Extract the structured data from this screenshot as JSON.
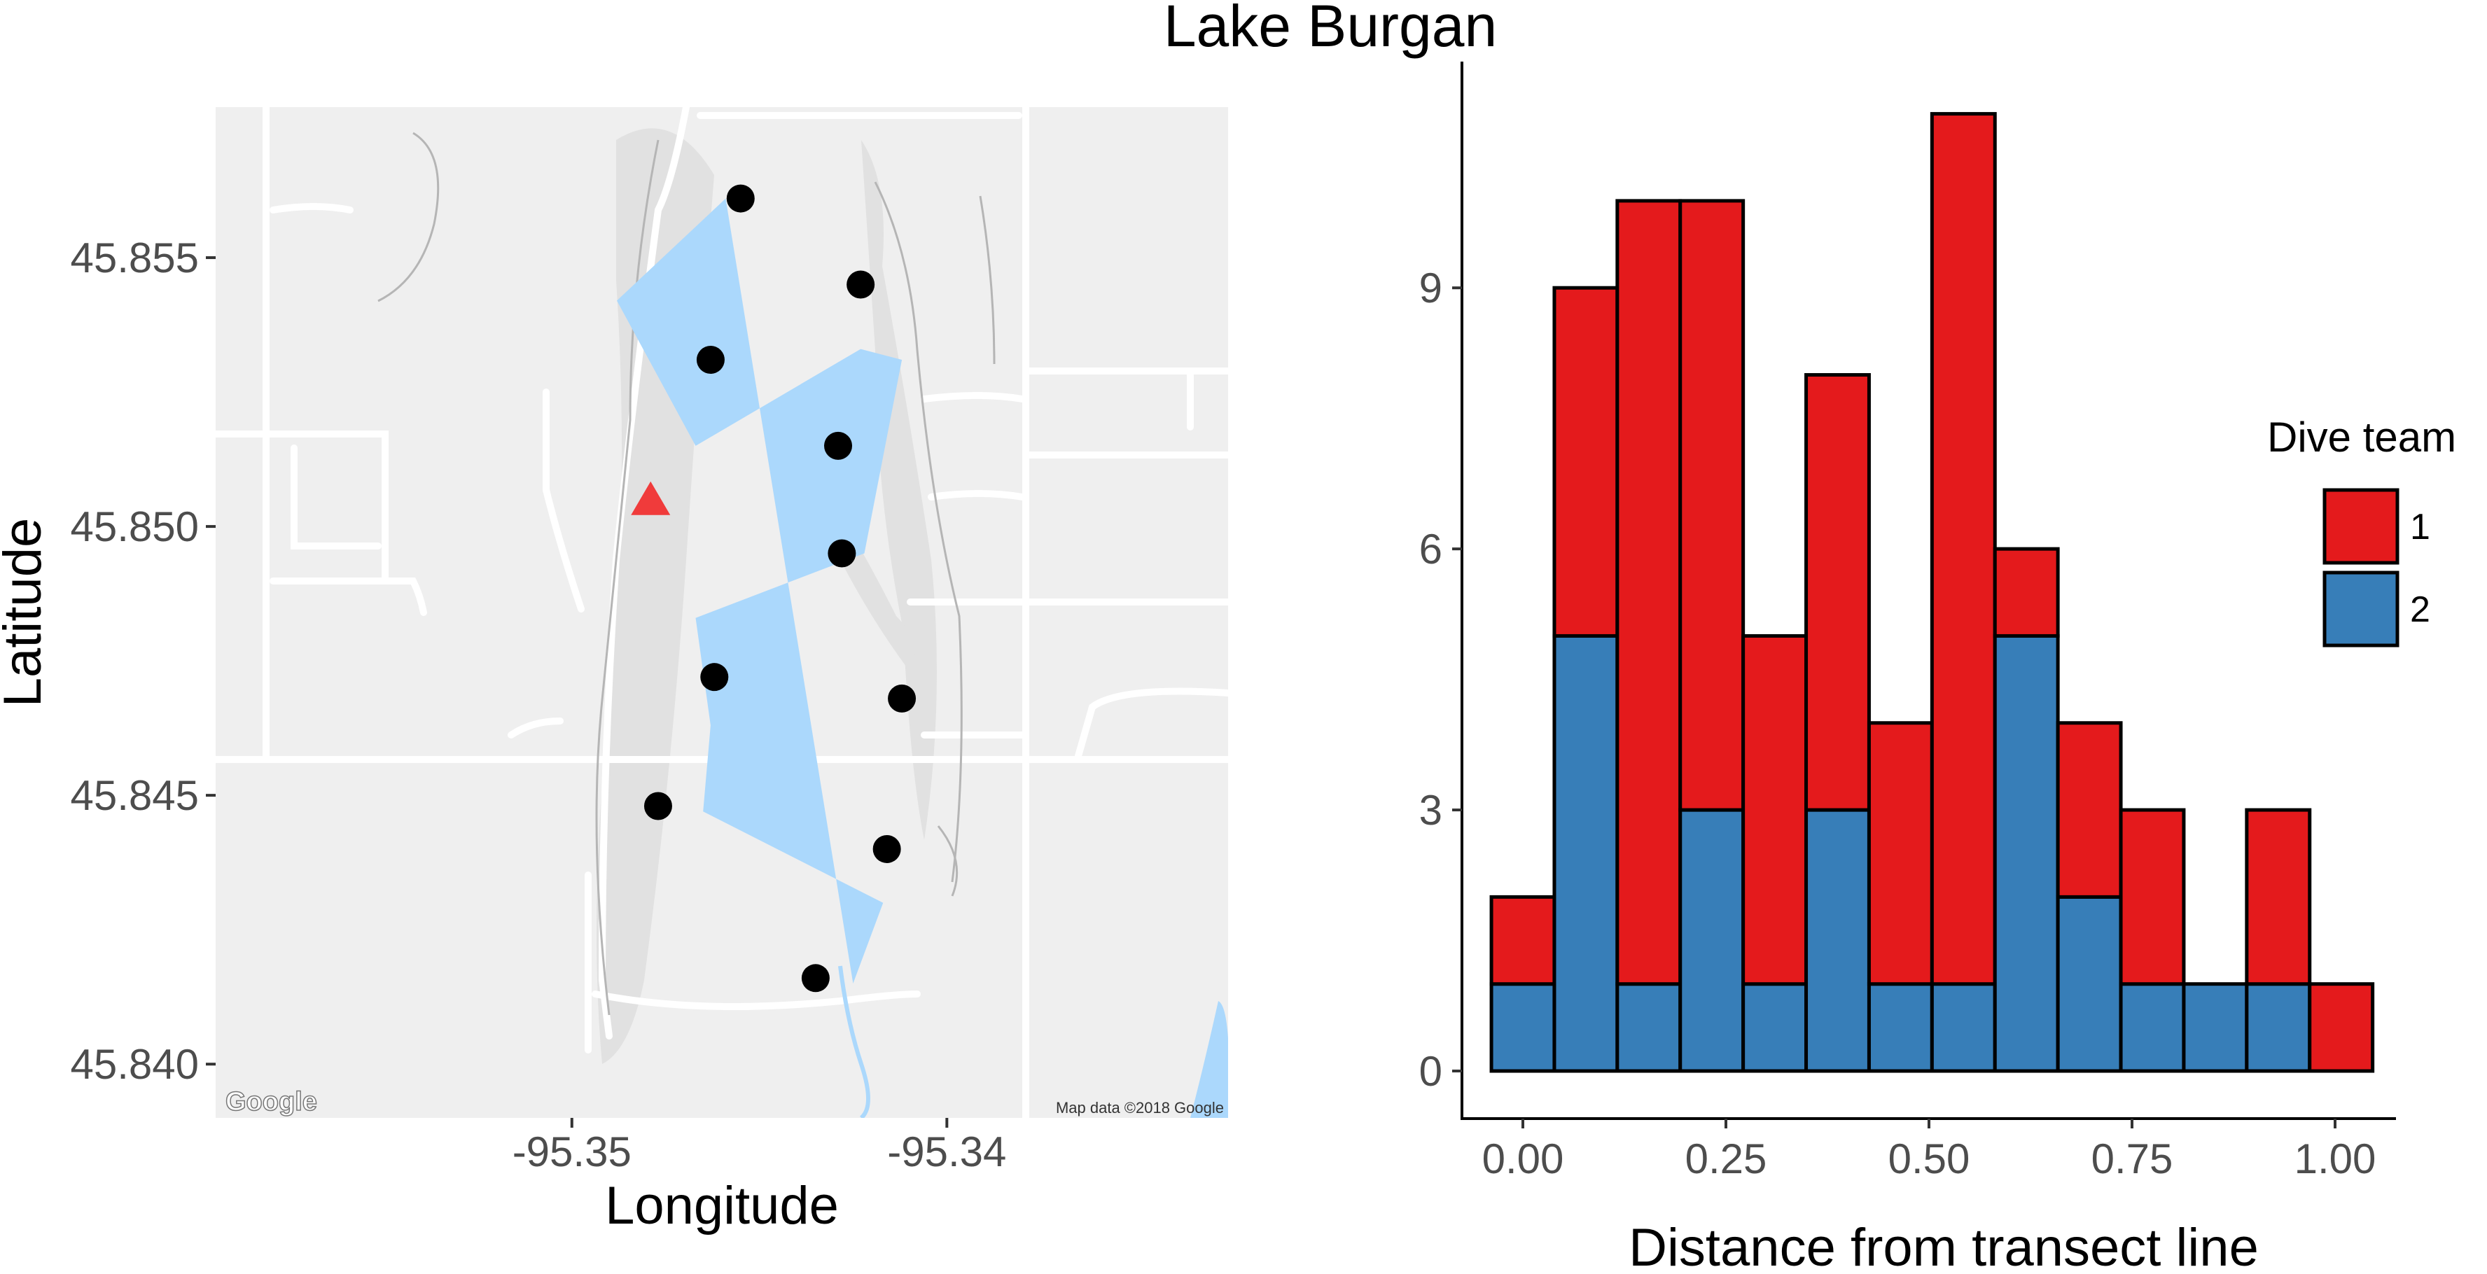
{
  "title": "Lake Burgan",
  "chart_data": [
    {
      "type": "scatter",
      "subtype": "map",
      "xlabel": "Longitude",
      "ylabel": "Latitude",
      "xlim": [
        -95.3595,
        -95.3325
      ],
      "ylim": [
        45.839,
        45.8578
      ],
      "x_ticks": [
        -95.35,
        -95.34
      ],
      "x_tick_labels": [
        "-95.35",
        "-95.34"
      ],
      "y_ticks": [
        45.84,
        45.845,
        45.85,
        45.855
      ],
      "y_tick_labels": [
        "45.840",
        "45.845",
        "45.850",
        "45.855"
      ],
      "lake_points": [
        [
          -95.3459,
          45.8561
        ],
        [
          -95.3488,
          45.8542
        ],
        [
          -95.3467,
          45.8515
        ],
        [
          -95.3423,
          45.8533
        ],
        [
          -95.3412,
          45.8531
        ],
        [
          -95.3422,
          45.8495
        ],
        [
          -95.3467,
          45.8483
        ],
        [
          -95.3463,
          45.8463
        ],
        [
          -95.3465,
          45.8447
        ],
        [
          -95.3417,
          45.843
        ],
        [
          -95.3425,
          45.8415
        ]
      ],
      "sample_points": [
        {
          "x": -95.3455,
          "y": 45.8561
        },
        {
          "x": -95.3423,
          "y": 45.8545
        },
        {
          "x": -95.3463,
          "y": 45.8531
        },
        {
          "x": -95.3429,
          "y": 45.8515
        },
        {
          "x": -95.3428,
          "y": 45.8495
        },
        {
          "x": -95.3462,
          "y": 45.8472
        },
        {
          "x": -95.3412,
          "y": 45.8468
        },
        {
          "x": -95.3477,
          "y": 45.8448
        },
        {
          "x": -95.3416,
          "y": 45.844
        },
        {
          "x": -95.3435,
          "y": 45.8416
        }
      ],
      "marker": {
        "x": -95.3479,
        "y": 45.8505,
        "shape": "triangle",
        "color": "#f03b3b"
      },
      "point_color": "#000000",
      "water_color": "#abd8fc",
      "land_color": "#efefef",
      "map_credit": "Map data ©2018 Google",
      "map_logo": "Google"
    },
    {
      "type": "bar",
      "stacked": true,
      "xlabel": "Distance from transect line",
      "ylabel": "",
      "xlim": [
        -0.075,
        1.075
      ],
      "ylim": [
        0,
        11.6
      ],
      "bin_width": 0.0775,
      "bin_centers": [
        0.0,
        0.0775,
        0.155,
        0.2325,
        0.31,
        0.3875,
        0.465,
        0.5425,
        0.62,
        0.6975,
        0.775,
        0.8525,
        0.93,
        1.0075
      ],
      "x_ticks": [
        0.0,
        0.25,
        0.5,
        0.75,
        1.0
      ],
      "x_tick_labels": [
        "0.00",
        "0.25",
        "0.50",
        "0.75",
        "1.00"
      ],
      "y_ticks": [
        0,
        3,
        6,
        9
      ],
      "y_tick_labels": [
        "0",
        "3",
        "6",
        "9"
      ],
      "legend_title": "Dive team",
      "legend_position": "right",
      "series": [
        {
          "name": "2",
          "color": "#377eb8",
          "values": [
            1,
            5,
            1,
            3,
            1,
            3,
            1,
            1,
            5,
            2,
            1,
            1,
            1,
            0
          ]
        },
        {
          "name": "1",
          "color": "#e41a1c",
          "values": [
            1,
            4,
            9,
            7,
            4,
            5,
            3,
            10,
            1,
            2,
            2,
            0,
            2,
            1
          ]
        }
      ]
    }
  ]
}
